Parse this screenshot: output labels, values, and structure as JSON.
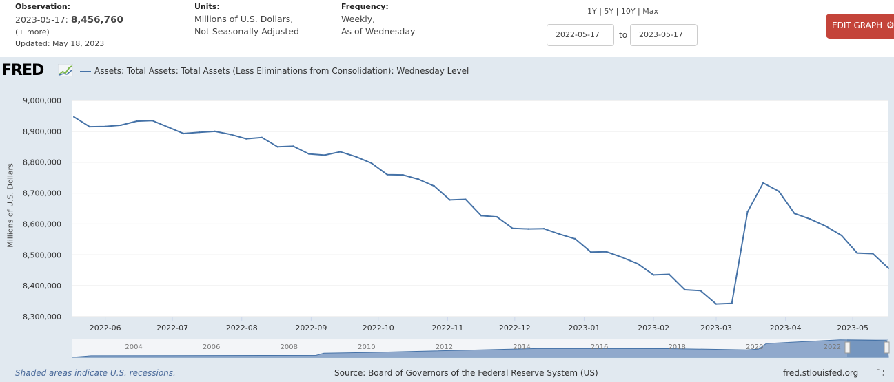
{
  "header": {
    "observation": {
      "label": "Observation:",
      "date": "2023-05-17:",
      "value": "8,456,760",
      "more": "(+ more)",
      "updated": "Updated: May 18, 2023"
    },
    "units": {
      "label": "Units:",
      "line1": "Millions of U.S. Dollars,",
      "line2": "Not Seasonally Adjusted"
    },
    "frequency": {
      "label": "Frequency:",
      "line1": "Weekly,",
      "line2": "As of Wednesday"
    },
    "ranges": "1Y | 5Y | 10Y | Max",
    "start_date": "2022-05-17",
    "to_label": "to",
    "end_date": "2023-05-17",
    "edit_button": "EDIT GRAPH"
  },
  "logo_text": "FRED",
  "colors": {
    "series": "#4572a7",
    "edit_button": "#c4443a",
    "background": "#e1e9f0"
  },
  "chart_data": {
    "type": "line",
    "ylabel": "Millions of U.S. Dollars",
    "ylim": [
      8300000,
      9000000
    ],
    "yticks": [
      9000000,
      8900000,
      8800000,
      8700000,
      8600000,
      8500000,
      8400000,
      8300000
    ],
    "ytick_labels": [
      "9,000,000",
      "8,900,000",
      "8,800,000",
      "8,700,000",
      "8,600,000",
      "8,500,000",
      "8,400,000",
      "8,300,000"
    ],
    "xlim": [
      "2022-05-17",
      "2023-05-17"
    ],
    "xticks": [
      "2022-06-01",
      "2022-07-01",
      "2022-08-01",
      "2022-09-01",
      "2022-10-01",
      "2022-11-01",
      "2022-12-01",
      "2023-01-01",
      "2023-02-01",
      "2023-03-01",
      "2023-04-01",
      "2023-05-01"
    ],
    "xtick_labels": [
      "2022-06",
      "2022-07",
      "2022-08",
      "2022-09",
      "2022-10",
      "2022-11",
      "2022-12",
      "2023-01",
      "2023-02",
      "2023-03",
      "2023-04",
      "2023-05"
    ],
    "series": [
      {
        "name": "Assets: Total Assets: Total Assets (Less Eliminations from Consolidation): Wednesday Level",
        "x": [
          "2022-05-18",
          "2022-05-25",
          "2022-06-01",
          "2022-06-08",
          "2022-06-15",
          "2022-06-22",
          "2022-06-29",
          "2022-07-06",
          "2022-07-13",
          "2022-07-20",
          "2022-07-27",
          "2022-08-03",
          "2022-08-10",
          "2022-08-17",
          "2022-08-24",
          "2022-08-31",
          "2022-09-07",
          "2022-09-14",
          "2022-09-21",
          "2022-09-28",
          "2022-10-05",
          "2022-10-12",
          "2022-10-19",
          "2022-10-26",
          "2022-11-02",
          "2022-11-09",
          "2022-11-16",
          "2022-11-23",
          "2022-11-30",
          "2022-12-07",
          "2022-12-14",
          "2022-12-21",
          "2022-12-28",
          "2023-01-04",
          "2023-01-11",
          "2023-01-18",
          "2023-01-25",
          "2023-02-01",
          "2023-02-08",
          "2023-02-15",
          "2023-02-22",
          "2023-03-01",
          "2023-03-08",
          "2023-03-15",
          "2023-03-22",
          "2023-03-29",
          "2023-04-05",
          "2023-04-12",
          "2023-04-19",
          "2023-04-26",
          "2023-05-03",
          "2023-05-10",
          "2023-05-17"
        ],
        "values": [
          8947000,
          8915000,
          8916000,
          8920000,
          8933000,
          8935000,
          8914000,
          8893000,
          8897000,
          8900000,
          8890000,
          8876000,
          8880000,
          8850000,
          8852000,
          8827000,
          8823000,
          8834000,
          8818000,
          8797000,
          8760000,
          8759000,
          8745000,
          8723000,
          8678000,
          8680000,
          8627000,
          8623000,
          8586000,
          8584000,
          8585000,
          8567000,
          8552000,
          8509000,
          8510000,
          8492000,
          8471000,
          8435000,
          8437000,
          8387000,
          8384000,
          8341000,
          8343000,
          8639000,
          8733000,
          8706000,
          8634000,
          8616000,
          8593000,
          8563000,
          8506000,
          8504000,
          8456760
        ]
      }
    ],
    "navigator": {
      "xtick_labels": [
        "2004",
        "2006",
        "2008",
        "2010",
        "2012",
        "2014",
        "2016",
        "2018",
        "2020",
        "2022"
      ],
      "x": [
        2002.9,
        2008.7,
        2008.9,
        2010,
        2014.5,
        2017.8,
        2019.8,
        2020.1,
        2020.3,
        2022.2,
        2023.4
      ],
      "values": [
        0.73,
        0.9,
        2.0,
        2.4,
        4.5,
        4.4,
        3.8,
        4.2,
        7.0,
        8.9,
        8.5
      ]
    }
  },
  "footer": {
    "recession_note": "Shaded areas indicate U.S. recessions.",
    "source": "Source: Board of Governors of the Federal Reserve System (US)",
    "site": "fred.stlouisfed.org"
  }
}
